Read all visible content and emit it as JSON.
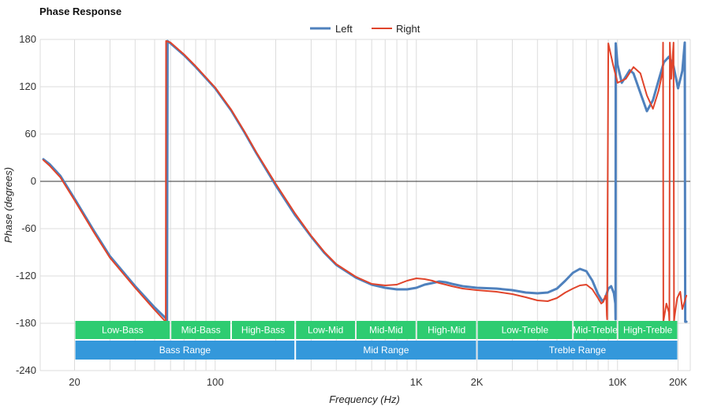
{
  "chart_data": {
    "type": "line",
    "title": "Phase Response",
    "xlabel": "Frequency (Hz)",
    "ylabel": "Phase (degrees)",
    "x_scale": "log",
    "xlim": [
      13.5,
      23000
    ],
    "ylim": [
      -240,
      180
    ],
    "y_ticks": [
      180,
      120,
      60,
      0,
      -60,
      -120,
      -180,
      -240
    ],
    "x_ticks": [
      {
        "value": 20,
        "label": "20"
      },
      {
        "value": 100,
        "label": "100"
      },
      {
        "value": 1000,
        "label": "1K"
      },
      {
        "value": 2000,
        "label": "2K"
      },
      {
        "value": 10000,
        "label": "10K"
      },
      {
        "value": 20000,
        "label": "20K"
      }
    ],
    "grid": true,
    "legend_position": "top-center",
    "series": [
      {
        "name": "Left",
        "color": "#4f81bd",
        "x": [
          14,
          15,
          17,
          20,
          25,
          30,
          40,
          50,
          57.5,
          57.6,
          58,
          60,
          70,
          80,
          100,
          120,
          140,
          160,
          200,
          250,
          300,
          350,
          400,
          500,
          600,
          700,
          800,
          900,
          1000,
          1100,
          1200,
          1300,
          1400,
          1500,
          1700,
          2000,
          2500,
          3000,
          3500,
          4000,
          4500,
          5000,
          5500,
          6000,
          6500,
          7000,
          7500,
          8000,
          8400,
          8700,
          9000,
          9300,
          9600,
          9750,
          9780,
          9800,
          10000,
          10500,
          11000,
          11500,
          12000,
          13000,
          14000,
          15000,
          16000,
          17000,
          18000,
          19000,
          20000,
          21000,
          21600,
          21700,
          22000
        ],
        "y": [
          28,
          22,
          7,
          -22,
          -63,
          -95,
          -133,
          -160,
          -175,
          -178,
          178,
          175,
          160,
          145,
          118,
          90,
          62,
          36,
          -5,
          -43,
          -70,
          -91,
          -106,
          -122,
          -131,
          -135,
          -137,
          -137,
          -135,
          -131,
          -129,
          -127,
          -128,
          -130,
          -133,
          -135,
          -136,
          -138,
          -141,
          -142,
          -141,
          -136,
          -126,
          -116,
          -111,
          -114,
          -126,
          -143,
          -152,
          -148,
          -136,
          -133,
          -142,
          -155,
          -175,
          175,
          148,
          125,
          133,
          141,
          137,
          112,
          89,
          103,
          128,
          151,
          158,
          146,
          118,
          140,
          176,
          -178,
          -178
        ]
      },
      {
        "name": "Right",
        "color": "#e0442b",
        "x": [
          14,
          15,
          17,
          20,
          25,
          30,
          40,
          50,
          56.7,
          56.8,
          57,
          60,
          70,
          80,
          100,
          120,
          140,
          160,
          200,
          250,
          300,
          350,
          400,
          500,
          600,
          700,
          800,
          900,
          1000,
          1100,
          1200,
          1300,
          1400,
          1500,
          1700,
          2000,
          2500,
          3000,
          3500,
          4000,
          4500,
          5000,
          5500,
          6000,
          6500,
          7000,
          7500,
          8000,
          8300,
          8500,
          8700,
          8800,
          8850,
          8880,
          9000,
          9500,
          10000,
          11000,
          12000,
          13000,
          14000,
          15000,
          16000,
          16800,
          16850,
          16900,
          17500,
          18000,
          18100,
          18200,
          18500,
          19000,
          19100,
          19200,
          19800,
          20500,
          21000,
          22000
        ],
        "y": [
          27,
          20,
          5,
          -24,
          -65,
          -97,
          -135,
          -163,
          -178,
          -178,
          178,
          176,
          161,
          146,
          119,
          91,
          63,
          37,
          -3,
          -41,
          -69,
          -90,
          -105,
          -121,
          -130,
          -132,
          -131,
          -126,
          -123,
          -124,
          -126,
          -129,
          -131,
          -133,
          -136,
          -138,
          -140,
          -143,
          -147,
          -151,
          -152,
          -148,
          -141,
          -136,
          -132,
          -131,
          -137,
          -148,
          -155,
          -153,
          -145,
          -150,
          -170,
          -175,
          175,
          148,
          125,
          130,
          145,
          137,
          109,
          92,
          115,
          140,
          176,
          -178,
          -155,
          -166,
          -178,
          176,
          130,
          176,
          -178,
          -172,
          -148,
          -140,
          -162,
          -145
        ]
      }
    ],
    "bands": {
      "row1": [
        {
          "label": "Low-Bass",
          "from": 20,
          "to": 60
        },
        {
          "label": "Mid-Bass",
          "from": 60,
          "to": 120
        },
        {
          "label": "High-Bass",
          "from": 120,
          "to": 250
        },
        {
          "label": "Low-Mid",
          "from": 250,
          "to": 500
        },
        {
          "label": "Mid-Mid",
          "from": 500,
          "to": 1000
        },
        {
          "label": "High-Mid",
          "from": 1000,
          "to": 2000
        },
        {
          "label": "Low-Treble",
          "from": 2000,
          "to": 6000
        },
        {
          "label": "Mid-Treble",
          "from": 6000,
          "to": 10000
        },
        {
          "label": "High-Treble",
          "from": 10000,
          "to": 20000
        }
      ],
      "row2": [
        {
          "label": "Bass Range",
          "from": 20,
          "to": 250
        },
        {
          "label": "Mid Range",
          "from": 250,
          "to": 2000
        },
        {
          "label": "Treble Range",
          "from": 2000,
          "to": 20000
        }
      ],
      "row1_color": "#2ecc71",
      "row2_color": "#3498db"
    }
  }
}
